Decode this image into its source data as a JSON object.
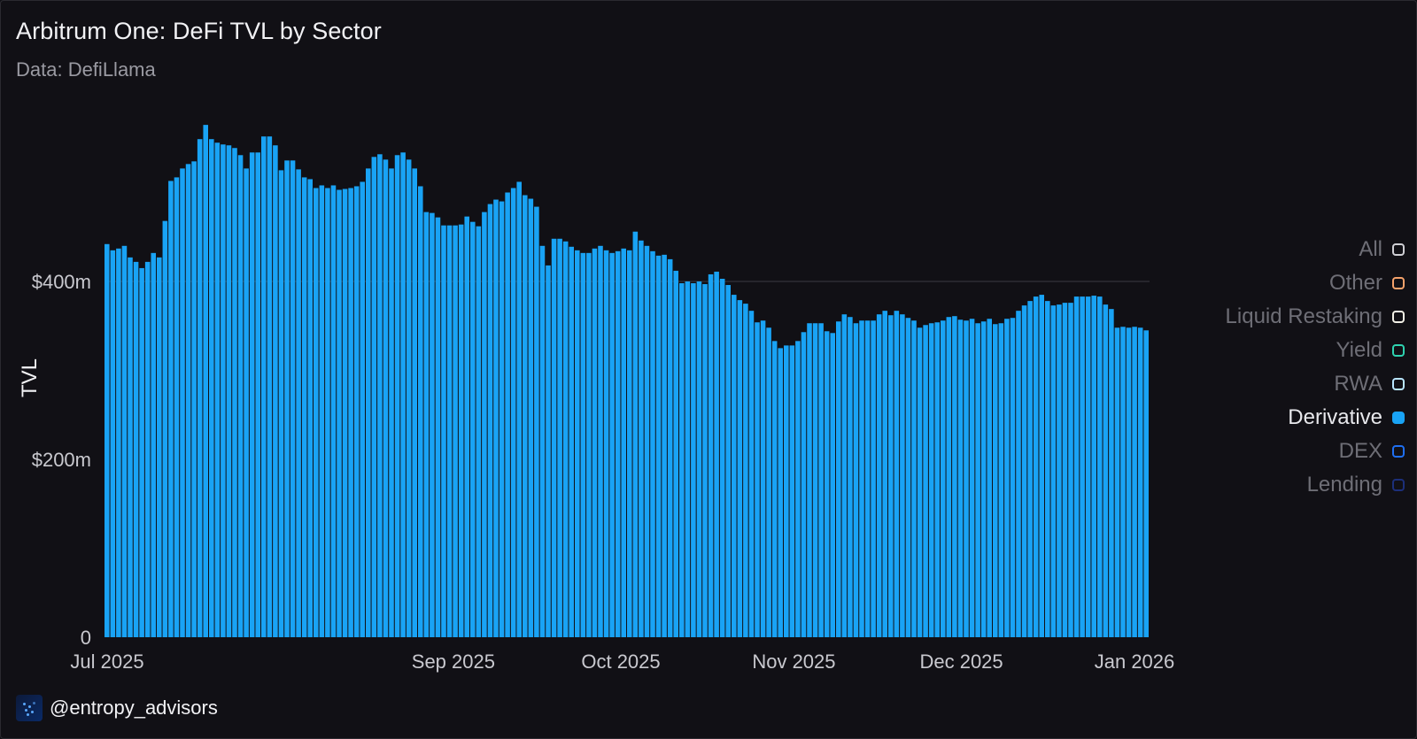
{
  "header": {
    "title": "Arbitrum One: DeFi TVL by Sector",
    "subtitle": "Data: DefiLlama"
  },
  "footer": {
    "handle": "@entropy_advisors"
  },
  "legend": [
    {
      "label": "All",
      "color": "#cfcfd4",
      "active": false
    },
    {
      "label": "Other",
      "color": "#f5a26b",
      "active": false
    },
    {
      "label": "Liquid Restaking",
      "color": "#f2f0e6",
      "active": false
    },
    {
      "label": "Yield",
      "color": "#2ed3b0",
      "active": false
    },
    {
      "label": "RWA",
      "color": "#b9e6ff",
      "active": false
    },
    {
      "label": "Derivative",
      "color": "#19a3f5",
      "active": true
    },
    {
      "label": "DEX",
      "color": "#1f6ff2",
      "active": false
    },
    {
      "label": "Lending",
      "color": "#1c2f7a",
      "active": false
    }
  ],
  "colors": {
    "background": "#111015",
    "bar": "#19a3f5",
    "active_text": "#e8e8ec",
    "inactive_text": "#6e6e76",
    "tick_text": "#c9c9cf"
  },
  "chart_data": {
    "type": "bar",
    "title": "Arbitrum One: DeFi TVL by Sector",
    "subtitle": "Data: DefiLlama",
    "ylabel": "TVL",
    "xlabel": "",
    "x_start": "2025-07-01",
    "x_end": "2026-01-01",
    "x_ticks": [
      "Jul 2025",
      "Sep 2025",
      "Oct 2025",
      "Nov 2025",
      "Dec 2025",
      "Jan 2026"
    ],
    "y_ticks": [
      "0",
      "$200m",
      "$400m"
    ],
    "y_tick_values": [
      0,
      200,
      400
    ],
    "ylim": [
      0,
      580
    ],
    "grid": "horizontal at $400m only",
    "legend_position": "right",
    "series": [
      {
        "name": "Derivative",
        "values": [
          442,
          435,
          437,
          440,
          427,
          422,
          415,
          422,
          432,
          427,
          468,
          513,
          517,
          527,
          532,
          535,
          560,
          576,
          560,
          556,
          554,
          553,
          550,
          542,
          527,
          545,
          545,
          563,
          563,
          553,
          525,
          536,
          536,
          526,
          517,
          515,
          505,
          508,
          505,
          508,
          503,
          504,
          505,
          507,
          512,
          527,
          540,
          543,
          537,
          527,
          542,
          545,
          537,
          527,
          507,
          478,
          477,
          472,
          463,
          463,
          463,
          464,
          473,
          467,
          462,
          478,
          487,
          492,
          490,
          500,
          505,
          512,
          497,
          493,
          484,
          440,
          418,
          448,
          448,
          445,
          439,
          435,
          432,
          432,
          437,
          440,
          435,
          432,
          434,
          437,
          435,
          456,
          446,
          440,
          434,
          429,
          430,
          425,
          412,
          398,
          400,
          398,
          400,
          397,
          408,
          411,
          403,
          396,
          385,
          379,
          375,
          367,
          354,
          356,
          348,
          333,
          325,
          328,
          328,
          333,
          343,
          353,
          353,
          353,
          344,
          342,
          355,
          363,
          360,
          353,
          356,
          356,
          356,
          363,
          367,
          362,
          367,
          363,
          359,
          356,
          348,
          351,
          353,
          354,
          356,
          360,
          361,
          357,
          356,
          358,
          353,
          355,
          358,
          352,
          353,
          358,
          359,
          367,
          373,
          378,
          383,
          385,
          378,
          373,
          374,
          376,
          376,
          383,
          383,
          383,
          384,
          383,
          374,
          369,
          348,
          349,
          348,
          349,
          348,
          345
        ]
      }
    ]
  }
}
